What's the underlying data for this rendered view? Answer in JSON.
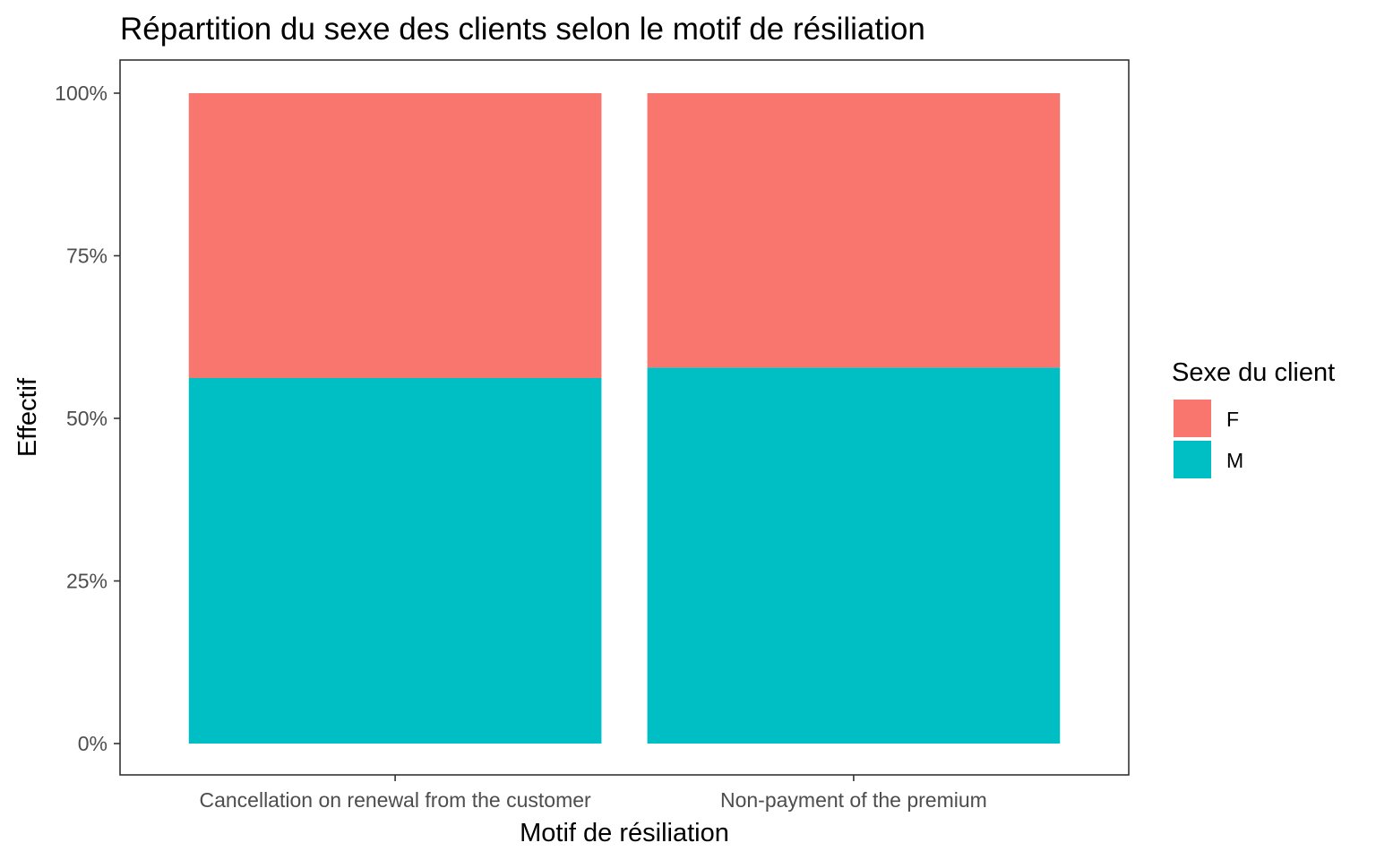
{
  "chart_data": {
    "type": "bar",
    "stacked": true,
    "normalized": true,
    "title": "Répartition du sexe des clients selon le motif de résiliation",
    "xlabel": "Motif de résiliation",
    "ylabel": "Effectif",
    "categories": [
      "Cancellation on renewal from the customer",
      "Non-payment of the premium"
    ],
    "series": [
      {
        "name": "F",
        "color": "#F8766D",
        "values": [
          0.438,
          0.422
        ]
      },
      {
        "name": "M",
        "color": "#00BFC4",
        "values": [
          0.562,
          0.578
        ]
      }
    ],
    "ylim": [
      0,
      1
    ],
    "yticks": [
      0,
      0.25,
      0.5,
      0.75,
      1
    ],
    "ytick_labels": [
      "0%",
      "25%",
      "50%",
      "75%",
      "100%"
    ],
    "grid": false,
    "legend": {
      "title": "Sexe du client",
      "position": "right"
    }
  }
}
